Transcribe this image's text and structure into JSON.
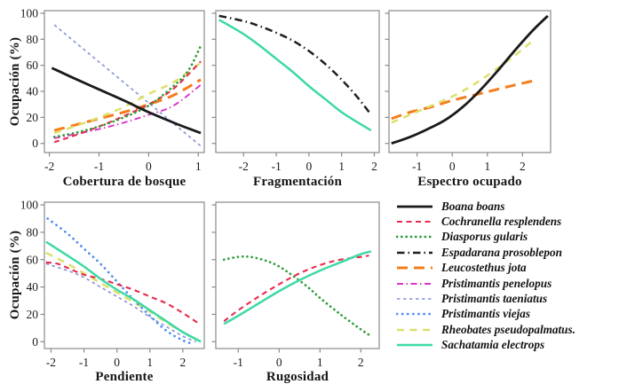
{
  "axis": {
    "y_label": "Ocupación (%)",
    "y_ticks": [
      0,
      20,
      40,
      60,
      80,
      100
    ]
  },
  "species_styles": {
    "Boana boans": {
      "color": "#1a1a1a",
      "dash": "",
      "width": 2.8,
      "cap": "butt"
    },
    "Cochranella resplendens": {
      "color": "#e72b4e",
      "dash": "6 4.5",
      "width": 2.1,
      "cap": "butt"
    },
    "Diasporus gularis": {
      "color": "#2e9e3a",
      "dash": "0.1 5.2",
      "width": 2.7,
      "cap": "round"
    },
    "Espadarana prosoblepon": {
      "color": "#1f1f1f",
      "dash": "8.5 4 1.5 4",
      "width": 2.5,
      "cap": "butt"
    },
    "Leucostethus jota": {
      "color": "#f57d1c",
      "dash": "12 7",
      "width": 3,
      "cap": "butt"
    },
    "Pristimantis penelopus": {
      "color": "#d935c8",
      "dash": "7 3.5 1.5 3.5",
      "width": 1.9,
      "cap": "butt"
    },
    "Pristimantis taeniatus": {
      "color": "#8693d6",
      "dash": "3.5 3.5",
      "width": 1.6,
      "cap": "butt"
    },
    "Pristimantis viejas": {
      "color": "#4f8df5",
      "dash": "0.1 6",
      "width": 2.7,
      "cap": "round"
    },
    "Rheobates pseudopalmatus": {
      "color": "#dde06a",
      "dash": "8 6.5",
      "width": 2.5,
      "cap": "butt"
    },
    "Sachatamia electrops": {
      "color": "#3ed9a4",
      "dash": "",
      "width": 2.5,
      "cap": "butt"
    }
  },
  "legend": {
    "entries": [
      {
        "species": "Boana boans",
        "label": "Boana boans"
      },
      {
        "species": "Cochranella resplendens",
        "label": "Cochranella resplendens"
      },
      {
        "species": "Diasporus gularis",
        "label": "Diasporus gularis"
      },
      {
        "species": "Espadarana prosoblepon",
        "label": "Espadarana prosoblepon"
      },
      {
        "species": "Leucostethus jota",
        "label": "Leucostethus jota"
      },
      {
        "species": "Pristimantis penelopus",
        "label": "Pristimantis penelopus"
      },
      {
        "species": "Pristimantis taeniatus",
        "label": "Pristimantis taeniatus"
      },
      {
        "species": "Pristimantis viejas",
        "label": "Pristimantis viejas"
      },
      {
        "species": "Rheobates pseudopalmatus",
        "label": "Rheobates pseudopalmatus."
      },
      {
        "species": "Sachatamia electrops",
        "label": "Sachatamia electrops"
      }
    ]
  },
  "chart_data": [
    {
      "type": "line",
      "xlabel": "Cobertura de bosque",
      "ylabel": "Ocupación (%)",
      "xlim": [
        -2.1,
        1.12
      ],
      "ylim": [
        -7,
        102
      ],
      "x_ticks": [
        -2,
        -1,
        0,
        1
      ],
      "y_ticks": [
        0,
        20,
        40,
        60,
        80,
        100
      ],
      "y_tick_labels": true,
      "series": [
        {
          "name": "Pristimantis taeniatus",
          "points": [
            [
              -1.9,
              91
            ],
            [
              1.05,
              -2
            ]
          ]
        },
        {
          "name": "Pristimantis penelopus",
          "points": [
            [
              -1.9,
              4
            ],
            [
              -1.5,
              7
            ],
            [
              -1,
              11
            ],
            [
              -0.5,
              16
            ],
            [
              0,
              22
            ],
            [
              0.5,
              29
            ],
            [
              1.05,
              45
            ]
          ]
        },
        {
          "name": "Leucostethus jota",
          "points": [
            [
              -1.9,
              10
            ],
            [
              -1.5,
              14
            ],
            [
              -1,
              19
            ],
            [
              -0.5,
              24
            ],
            [
              0,
              30
            ],
            [
              0.5,
              37
            ],
            [
              1.05,
              49
            ]
          ]
        },
        {
          "name": "Rheobates pseudopalmatus",
          "points": [
            [
              -1.9,
              8
            ],
            [
              -1.5,
              13
            ],
            [
              -1,
              20
            ],
            [
              -0.5,
              28
            ],
            [
              0,
              38
            ],
            [
              0.5,
              47
            ],
            [
              1.05,
              62
            ]
          ]
        },
        {
          "name": "Cochranella resplendens",
          "points": [
            [
              -1.9,
              1
            ],
            [
              -1.5,
              6
            ],
            [
              -1,
              13
            ],
            [
              -0.5,
              21
            ],
            [
              0,
              30
            ],
            [
              0.5,
              42
            ],
            [
              1.05,
              63
            ]
          ]
        },
        {
          "name": "Diasporus gularis",
          "points": [
            [
              -1.9,
              5
            ],
            [
              -1.5,
              8
            ],
            [
              -1,
              13
            ],
            [
              -0.5,
              20
            ],
            [
              0,
              29
            ],
            [
              0.5,
              44
            ],
            [
              0.8,
              56
            ],
            [
              1.05,
              75
            ]
          ]
        },
        {
          "name": "Boana boans",
          "points": [
            [
              -1.95,
              58
            ],
            [
              -1.5,
              50
            ],
            [
              -1,
              41.5
            ],
            [
              -0.5,
              33
            ],
            [
              0,
              24
            ],
            [
              0.5,
              16
            ],
            [
              0.8,
              11.5
            ],
            [
              1.05,
              8
            ]
          ]
        }
      ]
    },
    {
      "type": "line",
      "xlabel": "Fragmentación",
      "ylabel": "",
      "xlim": [
        -2.85,
        2.15
      ],
      "ylim": [
        -7,
        102
      ],
      "x_ticks": [
        -2,
        -1,
        0,
        1,
        2
      ],
      "y_ticks": [
        0,
        20,
        40,
        60,
        80,
        100
      ],
      "y_tick_labels": false,
      "series": [
        {
          "name": "Sachatamia electrops",
          "points": [
            [
              -2.75,
              95
            ],
            [
              -2,
              84
            ],
            [
              -1.5,
              75
            ],
            [
              -1,
              65
            ],
            [
              -0.5,
              55
            ],
            [
              0,
              44
            ],
            [
              0.5,
              34
            ],
            [
              1,
              24
            ],
            [
              1.5,
              16
            ],
            [
              1.9,
              10
            ]
          ]
        },
        {
          "name": "Espadarana prosoblepon",
          "points": [
            [
              -2.75,
              98
            ],
            [
              -2,
              94
            ],
            [
              -1.5,
              90
            ],
            [
              -1,
              85
            ],
            [
              -0.5,
              79
            ],
            [
              0,
              71
            ],
            [
              0.5,
              61
            ],
            [
              1,
              49
            ],
            [
              1.5,
              35
            ],
            [
              1.9,
              22
            ]
          ]
        }
      ]
    },
    {
      "type": "line",
      "xlabel": "Espectro ocupado",
      "ylabel": "",
      "xlim": [
        -1.8,
        2.8
      ],
      "ylim": [
        -7,
        102
      ],
      "x_ticks": [
        -1,
        0,
        1,
        2
      ],
      "y_ticks": [
        0,
        20,
        40,
        60,
        80,
        100
      ],
      "y_tick_labels": false,
      "series": [
        {
          "name": "Leucostethus jota",
          "points": [
            [
              -1.73,
              19
            ],
            [
              -1.2,
              24
            ],
            [
              -0.6,
              28
            ],
            [
              0,
              33
            ],
            [
              0.6,
              37
            ],
            [
              1.2,
              41
            ],
            [
              1.8,
              45
            ],
            [
              2.3,
              48
            ]
          ]
        },
        {
          "name": "Rheobates pseudopalmatus",
          "points": [
            [
              -1.73,
              16
            ],
            [
              -1.2,
              22
            ],
            [
              -0.6,
              29
            ],
            [
              0,
              36
            ],
            [
              0.6,
              45
            ],
            [
              1.2,
              56
            ],
            [
              1.8,
              68
            ],
            [
              2.25,
              78
            ]
          ]
        },
        {
          "name": "Boana boans",
          "points": [
            [
              -1.73,
              0
            ],
            [
              -1.2,
              5
            ],
            [
              -0.7,
              11
            ],
            [
              -0.2,
              18
            ],
            [
              0.3,
              28
            ],
            [
              0.8,
              41
            ],
            [
              1.3,
              56
            ],
            [
              1.8,
              72
            ],
            [
              2.3,
              87
            ],
            [
              2.72,
              98
            ]
          ]
        }
      ]
    },
    {
      "type": "line",
      "xlabel": "Pendiente",
      "ylabel": "Ocupación (%)",
      "xlim": [
        -2.2,
        2.65
      ],
      "ylim": [
        -5,
        102
      ],
      "x_ticks": [
        -2,
        -1,
        0,
        1,
        2
      ],
      "y_ticks": [
        0,
        20,
        40,
        60,
        80,
        100
      ],
      "y_tick_labels": true,
      "series": [
        {
          "name": "Rheobates pseudopalmatus",
          "points": [
            [
              -2.15,
              65
            ],
            [
              -1.5,
              57
            ],
            [
              -1,
              50
            ],
            [
              -0.5,
              43
            ],
            [
              0,
              36
            ],
            [
              0.5,
              29
            ],
            [
              1,
              22
            ],
            [
              1.5,
              14
            ],
            [
              2,
              7
            ],
            [
              2.4,
              2
            ]
          ]
        },
        {
          "name": "Pristimantis taeniatus",
          "points": [
            [
              -2.15,
              57
            ],
            [
              -1.5,
              52
            ],
            [
              -1,
              47
            ],
            [
              -0.5,
              40
            ],
            [
              0,
              33
            ],
            [
              0.5,
              26
            ],
            [
              1,
              18
            ],
            [
              1.5,
              11
            ],
            [
              2,
              4
            ],
            [
              2.4,
              0
            ]
          ]
        },
        {
          "name": "Pristimantis viejas",
          "points": [
            [
              -2.1,
              90
            ],
            [
              -1.5,
              79
            ],
            [
              -1,
              68
            ],
            [
              -0.5,
              57
            ],
            [
              0,
              44
            ],
            [
              0.5,
              31
            ],
            [
              1,
              19
            ],
            [
              1.5,
              8
            ],
            [
              2,
              1
            ],
            [
              2.35,
              -2
            ]
          ]
        },
        {
          "name": "Cochranella resplendens",
          "points": [
            [
              -2.15,
              58
            ],
            [
              -1.8,
              57
            ],
            [
              -1.5,
              54
            ],
            [
              -1,
              49
            ],
            [
              -0.5,
              46
            ],
            [
              0,
              42
            ],
            [
              0.5,
              38
            ],
            [
              1,
              33
            ],
            [
              1.5,
              28
            ],
            [
              2,
              21
            ],
            [
              2.5,
              13
            ]
          ]
        },
        {
          "name": "Sachatamia electrops",
          "points": [
            [
              -2.15,
              73
            ],
            [
              -1.5,
              63
            ],
            [
              -1,
              55
            ],
            [
              -0.5,
              46
            ],
            [
              0,
              38
            ],
            [
              0.5,
              31
            ],
            [
              1,
              23
            ],
            [
              1.5,
              15
            ],
            [
              2,
              7
            ],
            [
              2.55,
              0
            ]
          ]
        }
      ]
    },
    {
      "type": "line",
      "xlabel": "Rugosidad",
      "ylabel": "",
      "xlim": [
        -1.55,
        2.45
      ],
      "ylim": [
        -5,
        102
      ],
      "x_ticks": [
        -1,
        0,
        1,
        2
      ],
      "y_ticks": [
        0,
        20,
        40,
        60,
        80,
        100
      ],
      "y_tick_labels": false,
      "series": [
        {
          "name": "Diasporus gularis",
          "points": [
            [
              -1.35,
              60
            ],
            [
              -1,
              62
            ],
            [
              -0.7,
              62
            ],
            [
              -0.3,
              59
            ],
            [
              0,
              55
            ],
            [
              0.3,
              49
            ],
            [
              0.7,
              40
            ],
            [
              1,
              32
            ],
            [
              1.5,
              20
            ],
            [
              2,
              9
            ],
            [
              2.2,
              5
            ]
          ]
        },
        {
          "name": "Cochranella resplendens",
          "points": [
            [
              -1.35,
              15
            ],
            [
              -1,
              23
            ],
            [
              -0.5,
              33
            ],
            [
              0,
              42
            ],
            [
              0.5,
              50
            ],
            [
              1,
              56
            ],
            [
              1.5,
              60
            ],
            [
              2,
              62
            ],
            [
              2.2,
              63
            ]
          ]
        },
        {
          "name": "Sachatamia electrops",
          "points": [
            [
              -1.35,
              13
            ],
            [
              -1,
              19
            ],
            [
              -0.5,
              28
            ],
            [
              0,
              37
            ],
            [
              0.5,
              45
            ],
            [
              1,
              52
            ],
            [
              1.5,
              58
            ],
            [
              2,
              64
            ],
            [
              2.25,
              66
            ]
          ]
        }
      ]
    }
  ]
}
